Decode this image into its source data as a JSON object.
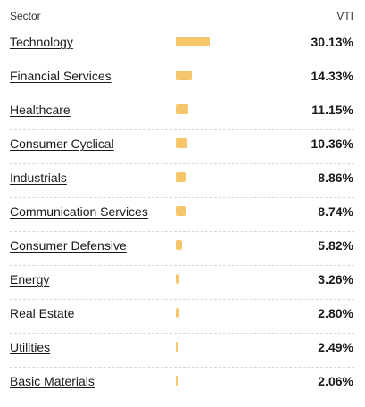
{
  "header": {
    "sector_label": "Sector",
    "fund_label": "VTI"
  },
  "colors": {
    "bar": "#f5c66b",
    "divider": "#d9d9d9"
  },
  "sectors": [
    {
      "name": "Technology",
      "value": "30.13%",
      "pct": 30.13
    },
    {
      "name": "Financial Services",
      "value": "14.33%",
      "pct": 14.33
    },
    {
      "name": "Healthcare",
      "value": "11.15%",
      "pct": 11.15
    },
    {
      "name": "Consumer Cyclical",
      "value": "10.36%",
      "pct": 10.36
    },
    {
      "name": "Industrials",
      "value": "8.86%",
      "pct": 8.86
    },
    {
      "name": "Communication Services",
      "value": "8.74%",
      "pct": 8.74
    },
    {
      "name": "Consumer Defensive",
      "value": "5.82%",
      "pct": 5.82
    },
    {
      "name": "Energy",
      "value": "3.26%",
      "pct": 3.26
    },
    {
      "name": "Real Estate",
      "value": "2.80%",
      "pct": 2.8
    },
    {
      "name": "Utilities",
      "value": "2.49%",
      "pct": 2.49
    },
    {
      "name": "Basic Materials",
      "value": "2.06%",
      "pct": 2.06
    }
  ]
}
